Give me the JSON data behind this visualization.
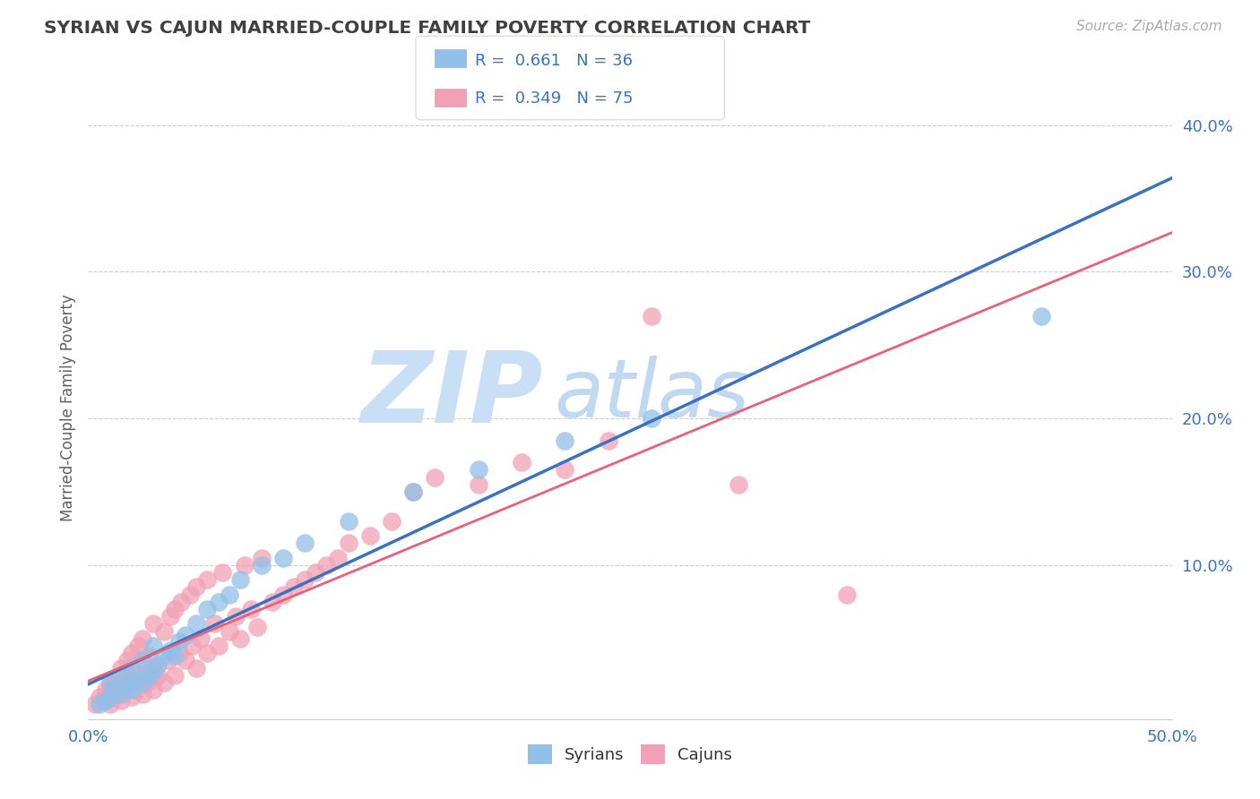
{
  "title": "SYRIAN VS CAJUN MARRIED-COUPLE FAMILY POVERTY CORRELATION CHART",
  "source": "Source: ZipAtlas.com",
  "ylabel": "Married-Couple Family Poverty",
  "xlim": [
    0.0,
    0.5
  ],
  "ylim": [
    -0.005,
    0.42
  ],
  "xticks": [
    0.0,
    0.1,
    0.2,
    0.3,
    0.4,
    0.5
  ],
  "xtick_labels": [
    "0.0%",
    "",
    "",
    "",
    "",
    "50.0%"
  ],
  "ytick_labels_right": [
    "10.0%",
    "20.0%",
    "30.0%",
    "40.0%"
  ],
  "yticks_right": [
    0.1,
    0.2,
    0.3,
    0.4
  ],
  "syrian_R": 0.661,
  "syrian_N": 36,
  "cajun_R": 0.349,
  "cajun_N": 75,
  "syrian_color": "#92c0e8",
  "cajun_color": "#f2a0b5",
  "syrian_line_color": "#3a72c0",
  "cajun_line_color": "#e8607a",
  "background_color": "#ffffff",
  "grid_color": "#cccccc",
  "title_color": "#404040",
  "axis_label_color": "#606060",
  "tick_label_color": "#3a72c0",
  "watermark_zip_color": "#c8dff5",
  "watermark_atlas_color": "#c0d8f0",
  "legend_text_color": "#3a72c0",
  "syrians_x": [
    0.005,
    0.008,
    0.01,
    0.01,
    0.012,
    0.015,
    0.015,
    0.018,
    0.02,
    0.02,
    0.022,
    0.025,
    0.025,
    0.028,
    0.03,
    0.03,
    0.032,
    0.035,
    0.038,
    0.04,
    0.042,
    0.045,
    0.05,
    0.055,
    0.06,
    0.065,
    0.07,
    0.08,
    0.09,
    0.1,
    0.12,
    0.15,
    0.18,
    0.22,
    0.26,
    0.44
  ],
  "syrians_y": [
    0.005,
    0.008,
    0.01,
    0.02,
    0.015,
    0.012,
    0.025,
    0.018,
    0.015,
    0.03,
    0.022,
    0.02,
    0.035,
    0.025,
    0.028,
    0.045,
    0.032,
    0.038,
    0.042,
    0.038,
    0.048,
    0.052,
    0.06,
    0.07,
    0.075,
    0.08,
    0.09,
    0.1,
    0.105,
    0.115,
    0.13,
    0.15,
    0.165,
    0.185,
    0.2,
    0.27
  ],
  "cajuns_x": [
    0.003,
    0.005,
    0.007,
    0.008,
    0.01,
    0.01,
    0.012,
    0.012,
    0.013,
    0.015,
    0.015,
    0.015,
    0.017,
    0.018,
    0.018,
    0.02,
    0.02,
    0.02,
    0.022,
    0.022,
    0.023,
    0.025,
    0.025,
    0.025,
    0.027,
    0.028,
    0.03,
    0.03,
    0.03,
    0.032,
    0.035,
    0.035,
    0.037,
    0.038,
    0.04,
    0.04,
    0.042,
    0.043,
    0.045,
    0.047,
    0.048,
    0.05,
    0.05,
    0.052,
    0.055,
    0.055,
    0.058,
    0.06,
    0.062,
    0.065,
    0.068,
    0.07,
    0.072,
    0.075,
    0.078,
    0.08,
    0.085,
    0.09,
    0.095,
    0.1,
    0.105,
    0.11,
    0.115,
    0.12,
    0.13,
    0.14,
    0.15,
    0.16,
    0.18,
    0.2,
    0.22,
    0.24,
    0.26,
    0.3,
    0.35
  ],
  "cajuns_y": [
    0.005,
    0.01,
    0.008,
    0.015,
    0.005,
    0.018,
    0.01,
    0.022,
    0.012,
    0.008,
    0.02,
    0.03,
    0.015,
    0.025,
    0.035,
    0.01,
    0.02,
    0.04,
    0.015,
    0.03,
    0.045,
    0.012,
    0.025,
    0.05,
    0.02,
    0.038,
    0.015,
    0.03,
    0.06,
    0.025,
    0.02,
    0.055,
    0.035,
    0.065,
    0.025,
    0.07,
    0.04,
    0.075,
    0.035,
    0.08,
    0.045,
    0.03,
    0.085,
    0.05,
    0.04,
    0.09,
    0.06,
    0.045,
    0.095,
    0.055,
    0.065,
    0.05,
    0.1,
    0.07,
    0.058,
    0.105,
    0.075,
    0.08,
    0.085,
    0.09,
    0.095,
    0.1,
    0.105,
    0.115,
    0.12,
    0.13,
    0.15,
    0.16,
    0.155,
    0.17,
    0.165,
    0.185,
    0.27,
    0.155,
    0.08
  ]
}
